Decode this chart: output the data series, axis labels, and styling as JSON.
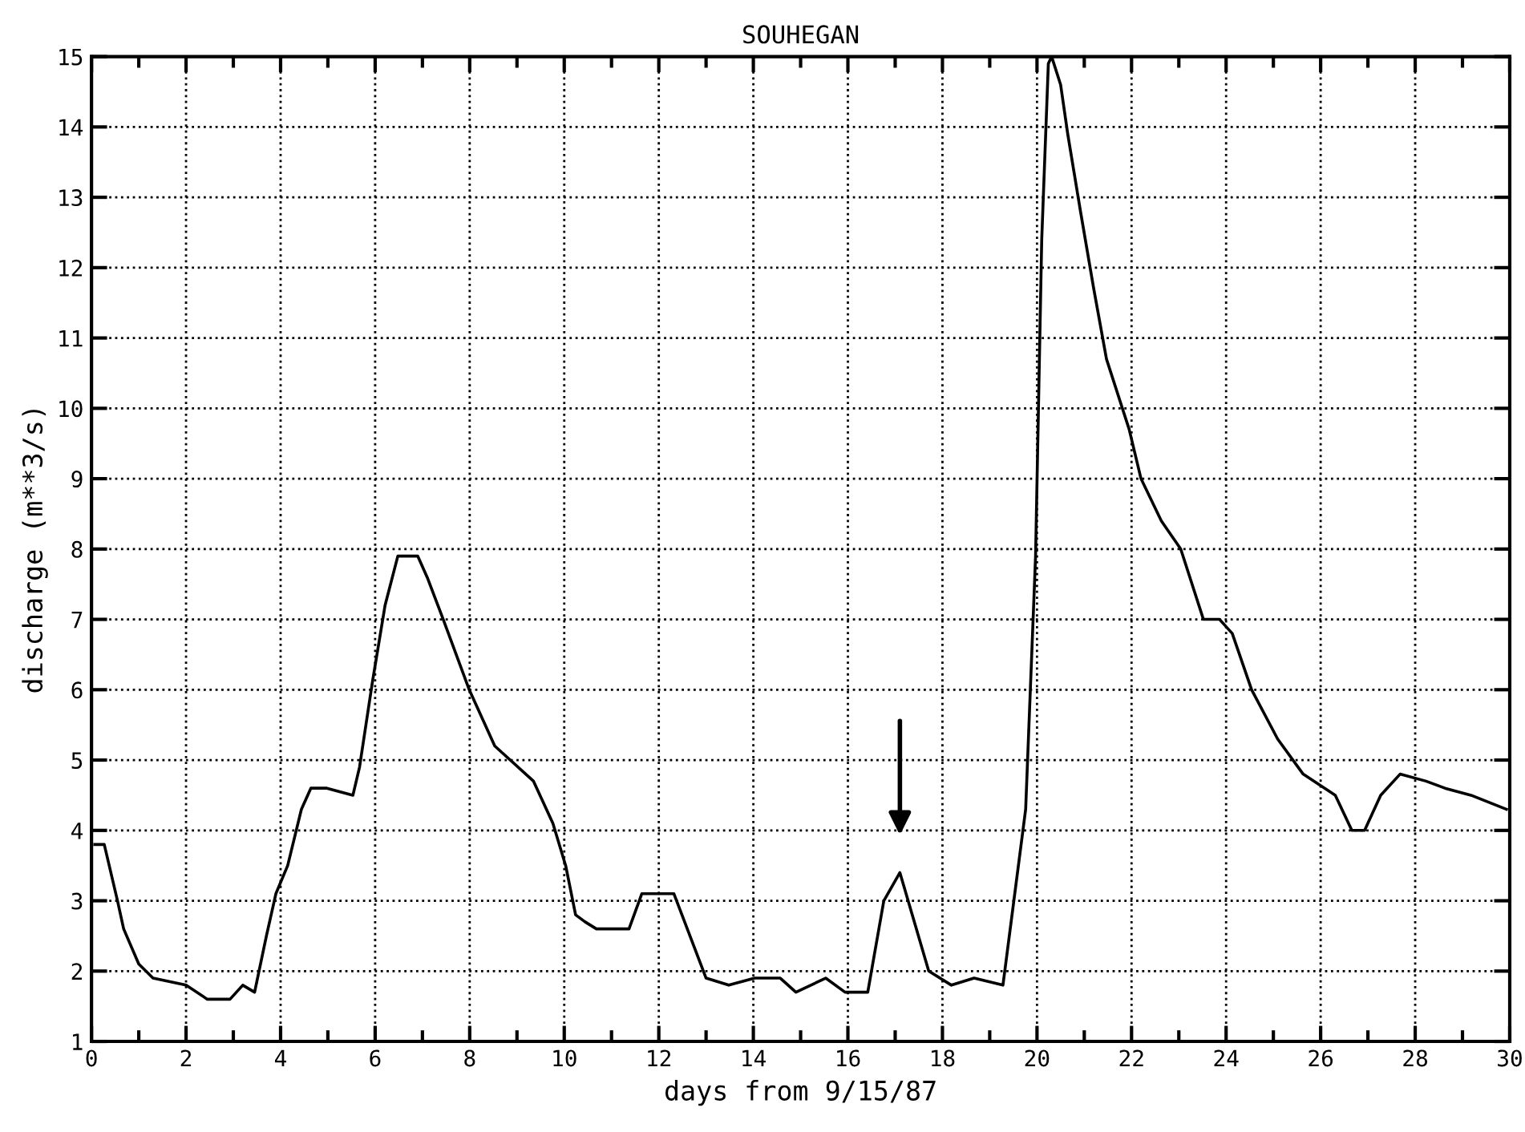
{
  "chart_data": {
    "type": "line",
    "title": "SOUHEGAN",
    "xlabel": "days from 9/15/87",
    "ylabel": "discharge (m**3/s)",
    "xlim": [
      0,
      30
    ],
    "ylim": [
      1,
      15
    ],
    "xticks": [
      0,
      2,
      4,
      6,
      8,
      10,
      12,
      14,
      16,
      18,
      20,
      22,
      24,
      26,
      28,
      30
    ],
    "yticks": [
      1,
      2,
      3,
      4,
      5,
      6,
      7,
      8,
      9,
      10,
      11,
      12,
      13,
      14,
      15
    ],
    "grid": true,
    "marker": "none",
    "line_style": "solid",
    "series": [
      {
        "color": "#000000",
        "x": [
          0.07,
          0.27,
          0.55,
          0.68,
          1.0,
          1.3,
          2.0,
          2.45,
          2.93,
          3.2,
          3.45,
          3.7,
          3.9,
          4.15,
          4.44,
          4.64,
          4.98,
          5.53,
          5.67,
          5.94,
          6.21,
          6.48,
          6.9,
          7.1,
          7.44,
          7.99,
          8.53,
          9.35,
          9.76,
          10.03,
          10.24,
          10.44,
          10.68,
          11.37,
          11.64,
          12.32,
          13.0,
          13.48,
          14.03,
          14.57,
          14.9,
          15.53,
          15.94,
          16.42,
          16.76,
          17.1,
          17.71,
          18.19,
          18.67,
          19.28,
          19.76,
          19.97,
          20.1,
          20.24,
          20.31,
          20.5,
          20.65,
          20.92,
          21.2,
          21.47,
          21.95,
          22.2,
          22.63,
          23.04,
          23.52,
          23.86,
          24.13,
          24.54,
          25.09,
          25.63,
          26.31,
          26.66,
          26.93,
          27.27,
          27.68,
          28.23,
          28.63,
          29.18,
          29.93
        ],
        "values": [
          3.8,
          3.8,
          3.0,
          2.6,
          2.1,
          1.9,
          1.8,
          1.6,
          1.6,
          1.8,
          1.7,
          2.5,
          3.1,
          3.5,
          4.3,
          4.6,
          4.6,
          4.5,
          4.9,
          6.1,
          7.2,
          7.9,
          7.9,
          7.6,
          7.0,
          6.0,
          5.2,
          4.7,
          4.1,
          3.5,
          2.8,
          2.7,
          2.6,
          2.6,
          3.1,
          3.1,
          1.9,
          1.8,
          1.9,
          1.9,
          1.7,
          1.9,
          1.7,
          1.7,
          3.0,
          3.4,
          2.0,
          1.8,
          1.9,
          1.8,
          4.3,
          7.9,
          12.4,
          14.9,
          15.0,
          14.6,
          13.9,
          12.8,
          11.7,
          10.7,
          9.7,
          9.0,
          8.4,
          8.0,
          7.0,
          7.0,
          6.8,
          6.0,
          5.3,
          4.8,
          4.5,
          4.0,
          4.0,
          4.5,
          4.8,
          4.7,
          4.6,
          4.5,
          4.3
        ]
      }
    ]
  }
}
